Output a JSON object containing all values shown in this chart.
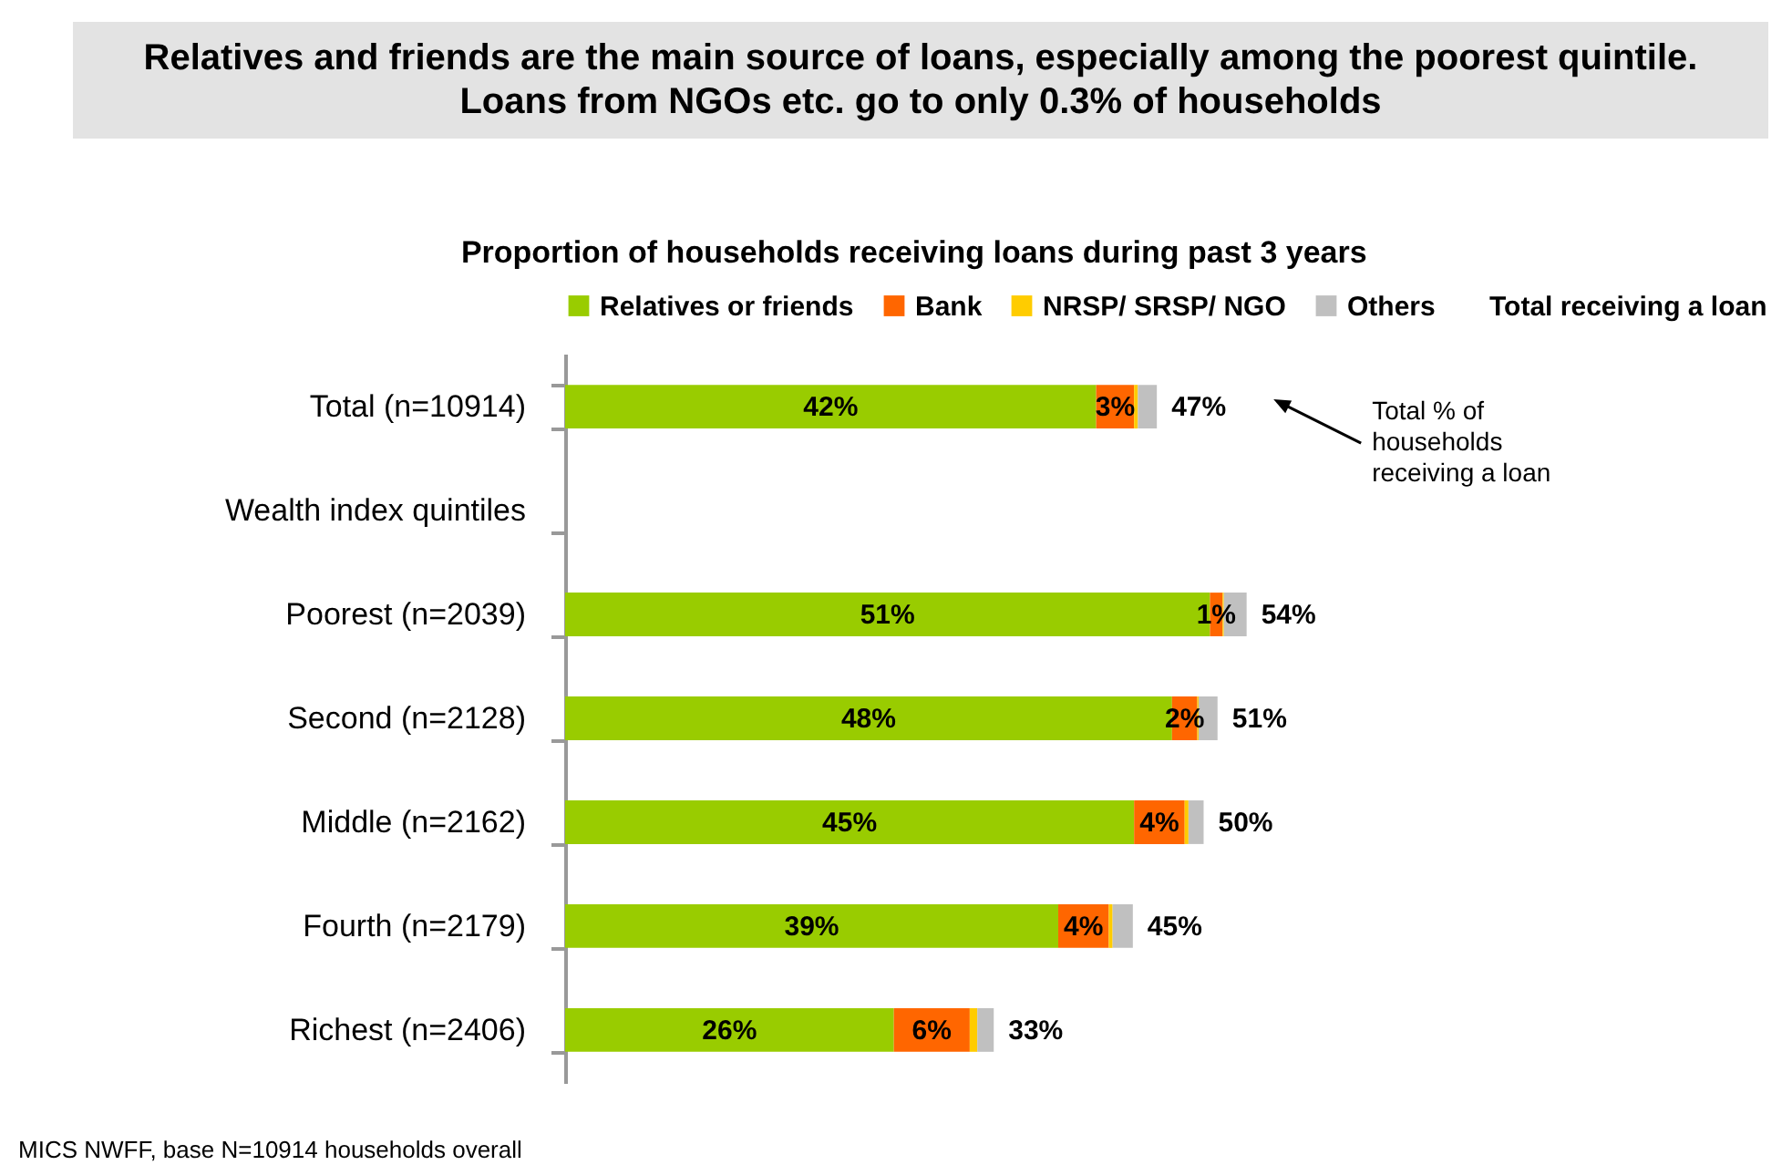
{
  "chart_data": {
    "type": "bar",
    "orientation": "horizontal",
    "stacked": true,
    "title": "Relatives and friends are the main source of loans, especially among the poorest quintile. Loans from NGOs etc. go to only 0.3% of households",
    "subtitle": "Proportion of households receiving loans during past 3 years",
    "legend_title": "Total receiving a loan",
    "legend": "top",
    "categories": [
      "Total (n=10914)",
      "Wealth index quintiles",
      "Poorest (n=2039)",
      "Second (n=2128)",
      "Middle (n=2162)",
      "Fourth (n=2179)",
      "Richest (n=2406)"
    ],
    "series": [
      {
        "name": "Relatives or friends",
        "color": "#99cc00",
        "values": [
          42,
          null,
          51,
          48,
          45,
          39,
          26
        ],
        "value_labels": [
          "42%",
          null,
          "51%",
          "48%",
          "45%",
          "39%",
          "26%"
        ]
      },
      {
        "name": "Bank",
        "color": "#ff6600",
        "values": [
          3,
          null,
          1,
          2,
          4,
          4,
          6
        ],
        "value_labels": [
          "3%",
          null,
          "1%",
          "2%",
          "4%",
          "4%",
          "6%"
        ]
      },
      {
        "name": "NRSP/ SRSP/ NGO",
        "color": "#ffcc00",
        "values": [
          0.3,
          null,
          0.1,
          0.1,
          0.3,
          0.3,
          0.6
        ]
      },
      {
        "name": "Others",
        "color": "#c0c0c0",
        "values": [
          1.5,
          null,
          1.8,
          1.5,
          1.2,
          1.6,
          1.3
        ]
      }
    ],
    "totals": [
      "47%",
      null,
      "54%",
      "51%",
      "50%",
      "45%",
      "33%"
    ],
    "annotations": [
      "Total % of households receiving a loan",
      "MICS NWFF, base N=10914 households overall"
    ]
  }
}
